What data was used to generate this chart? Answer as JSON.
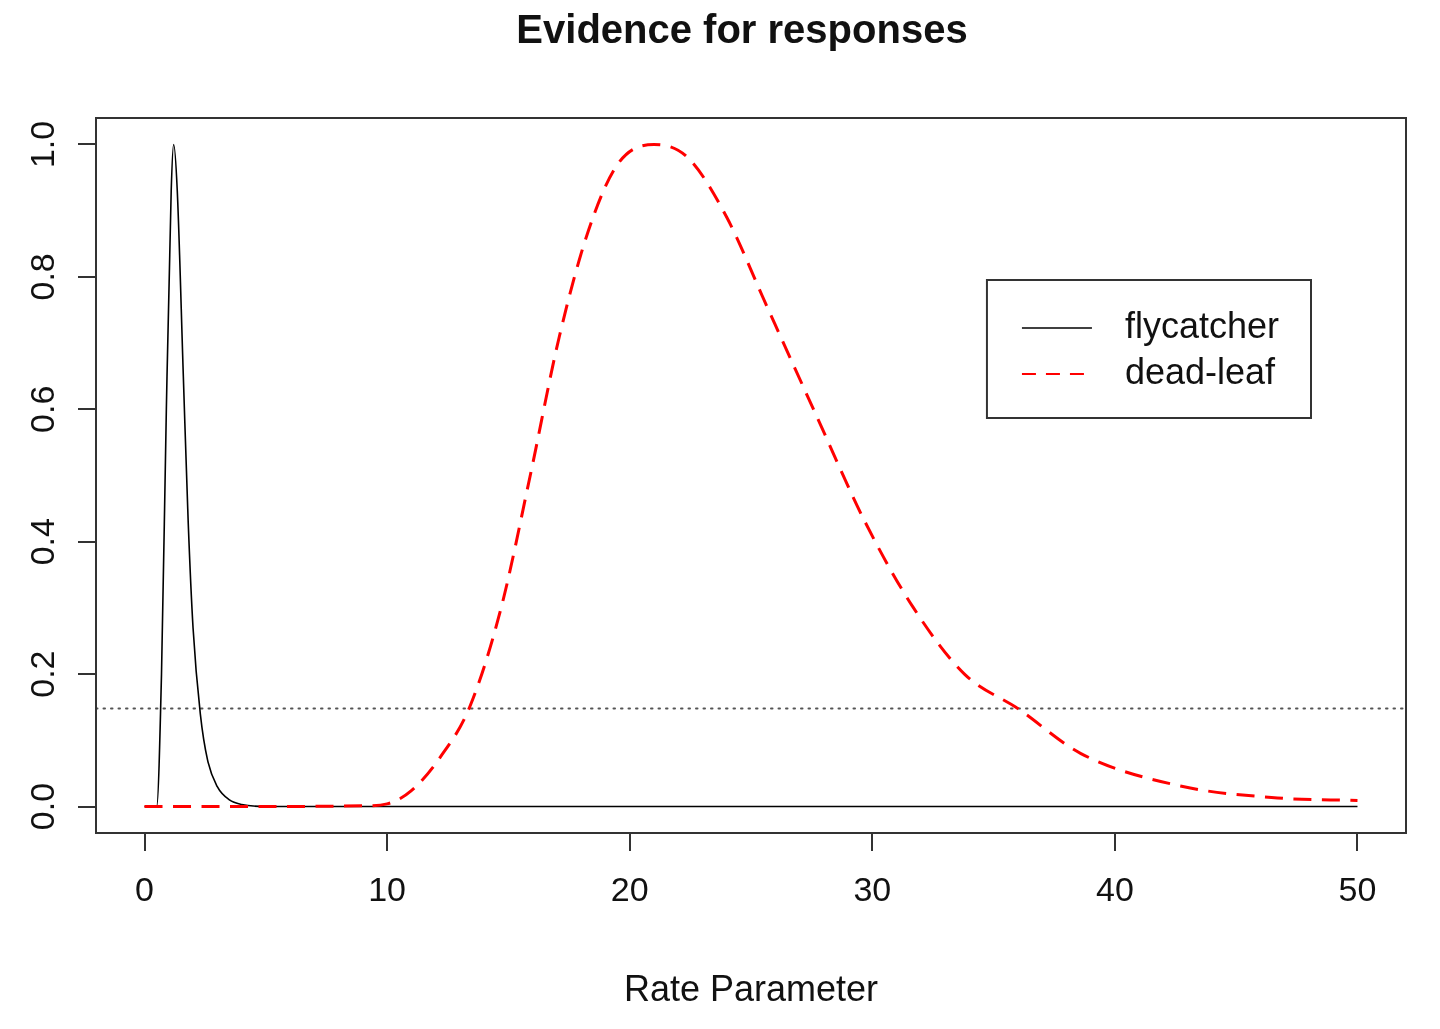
{
  "chart_data": {
    "type": "line",
    "title": "Evidence for responses",
    "xlabel": "Rate Parameter",
    "xlim": [
      -2,
      52
    ],
    "xticks": [
      0,
      10,
      20,
      30,
      40,
      50
    ],
    "ylim": [
      -0.04,
      1.04
    ],
    "yticks": [
      {
        "value": 0,
        "label": "0.0"
      },
      0.2,
      0.4,
      0.6,
      0.8,
      {
        "value": 1,
        "label": "1.0"
      }
    ],
    "grid": false,
    "legend": "top right",
    "marker": "none",
    "ref_lines": [
      {
        "axis": "y",
        "value": 0.148,
        "color": "#555555",
        "line_style": "dotted"
      }
    ],
    "series": [
      {
        "name": "flycatcher",
        "color": "#000000",
        "line_style": "solid",
        "x": [
          0,
          0.5,
          0.7,
          0.9,
          1.1,
          1.2,
          1.35,
          1.6,
          1.8,
          2.0,
          2.3,
          2.6,
          3,
          3.5,
          4,
          5,
          50
        ],
        "values": [
          0,
          0,
          0.2,
          0.6,
          0.93,
          1.0,
          0.93,
          0.65,
          0.43,
          0.27,
          0.14,
          0.07,
          0.03,
          0.01,
          0.003,
          0,
          0
        ]
      },
      {
        "name": "dead-leaf",
        "color": "#ff0000",
        "line_style": "dashed",
        "x": [
          0,
          5,
          9,
          10,
          11,
          12.2,
          13.4,
          14.7,
          15.9,
          17.1,
          18.3,
          19.5,
          21,
          22.4,
          24,
          25.6,
          27.7,
          29.7,
          31.7,
          33.8,
          36,
          38.6,
          42.7,
          46.7,
          50
        ],
        "values": [
          0,
          0,
          0.001,
          0.004,
          0.024,
          0.075,
          0.15,
          0.3,
          0.5,
          0.71,
          0.87,
          0.97,
          1.0,
          0.98,
          0.89,
          0.76,
          0.59,
          0.43,
          0.3,
          0.2,
          0.148,
          0.08,
          0.031,
          0.013,
          0.009
        ]
      }
    ]
  }
}
